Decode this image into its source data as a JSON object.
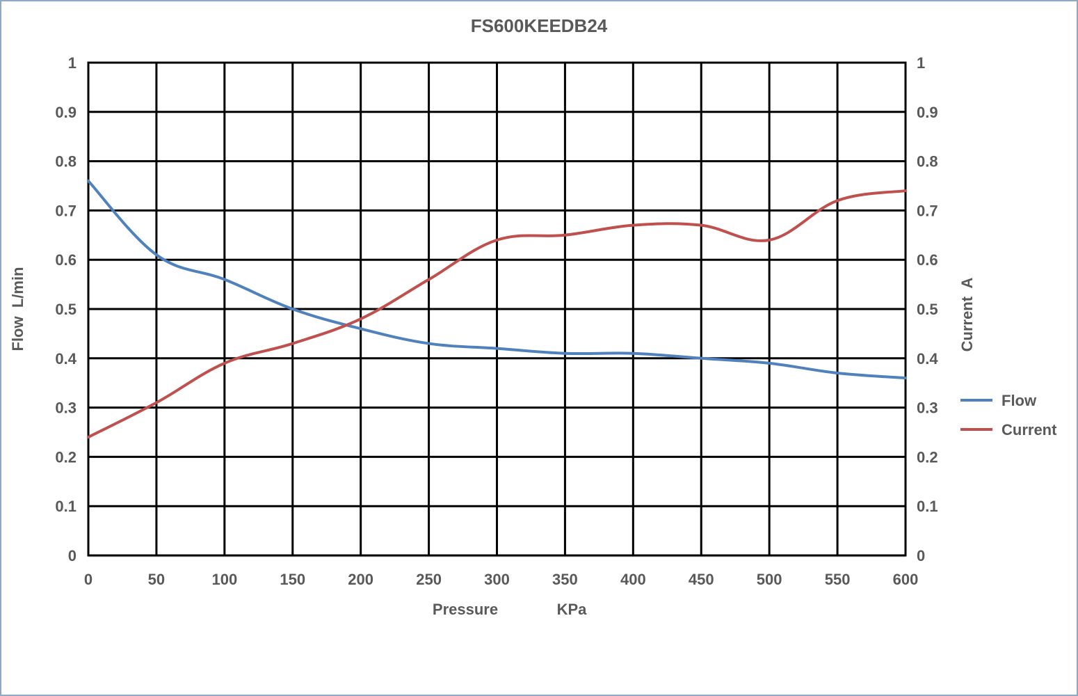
{
  "chart_data": {
    "type": "line",
    "title": "FS600KEEDB24",
    "xlabel": "Pressure",
    "xlabel_unit": "KPa",
    "ylabel": "Flow  L/min",
    "y2label": "Current  A",
    "xlim": [
      0,
      600
    ],
    "ylim": [
      0,
      1
    ],
    "y2lim": [
      0,
      1
    ],
    "x_ticks": [
      "0",
      "50",
      "100",
      "150",
      "200",
      "250",
      "300",
      "350",
      "400",
      "450",
      "500",
      "550",
      "600"
    ],
    "y_ticks": [
      "0",
      "0.1",
      "0.2",
      "0.3",
      "0.4",
      "0.5",
      "0.6",
      "0.7",
      "0.8",
      "0.9",
      "1"
    ],
    "y2_ticks": [
      "0",
      "0.1",
      "0.2",
      "0.3",
      "0.4",
      "0.5",
      "0.6",
      "0.7",
      "0.8",
      "0.9",
      "1"
    ],
    "grid": true,
    "legend_position": "right",
    "series": [
      {
        "name": "Flow",
        "axis": "left",
        "color": "#4f81bd",
        "x": [
          0,
          50,
          100,
          150,
          200,
          250,
          300,
          350,
          400,
          450,
          500,
          550,
          600
        ],
        "values": [
          0.76,
          0.61,
          0.56,
          0.5,
          0.46,
          0.43,
          0.42,
          0.41,
          0.41,
          0.4,
          0.39,
          0.37,
          0.36
        ]
      },
      {
        "name": "Current",
        "axis": "right",
        "color": "#c0504d",
        "x": [
          0,
          50,
          100,
          150,
          200,
          250,
          300,
          350,
          400,
          450,
          500,
          550,
          600
        ],
        "values": [
          0.24,
          0.31,
          0.39,
          0.43,
          0.48,
          0.56,
          0.64,
          0.65,
          0.67,
          0.67,
          0.64,
          0.72,
          0.74
        ]
      }
    ]
  }
}
